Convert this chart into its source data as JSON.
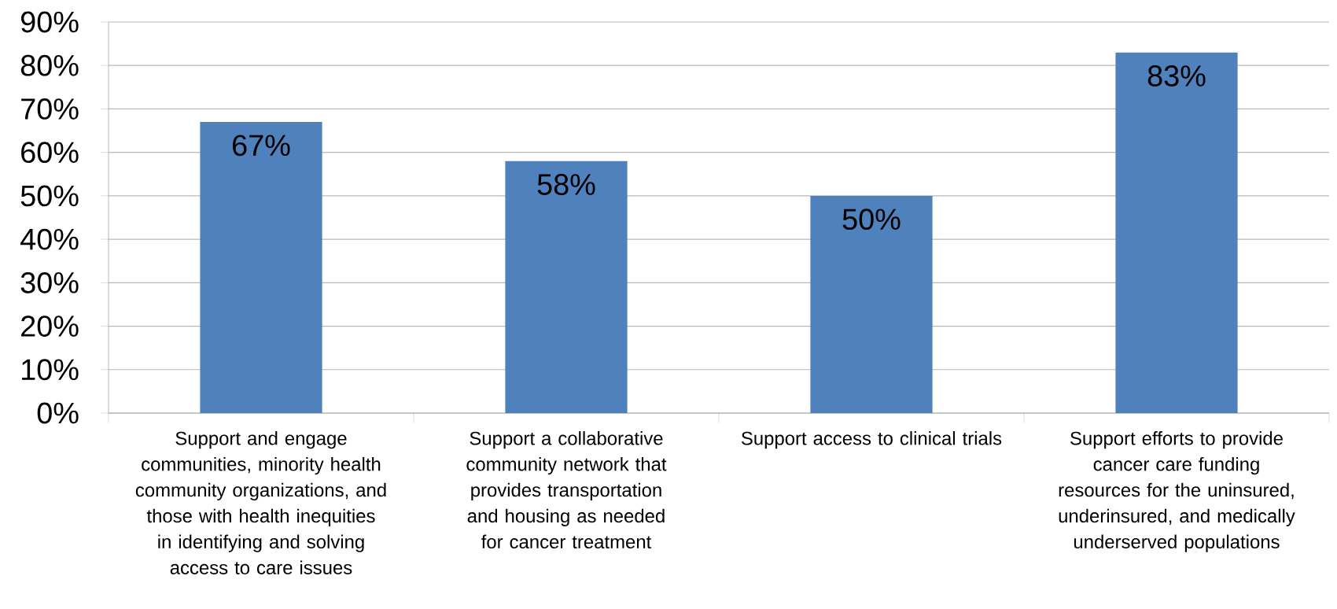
{
  "chart_data": {
    "type": "bar",
    "categories": [
      "Support and engage communities, minority health community organizations, and those with health inequities in identifying and solving access to care issues",
      "Support a collaborative community network that provides transportation and housing as needed for cancer treatment",
      "Support access to clinical trials",
      "Support efforts to provide cancer care funding resources for the uninsured, underinsured, and medically underserved populations"
    ],
    "values": [
      67,
      58,
      50,
      83
    ],
    "value_labels": [
      "67%",
      "58%",
      "50%",
      "83%"
    ],
    "color": "#4f81bd",
    "ylim": [
      0,
      90
    ],
    "yticks": [
      {
        "value": 0,
        "label": "0%"
      },
      {
        "value": 10,
        "label": "10%"
      },
      {
        "value": 20,
        "label": "20%"
      },
      {
        "value": 30,
        "label": "30%"
      },
      {
        "value": 40,
        "label": "40%"
      },
      {
        "value": 50,
        "label": "50%"
      },
      {
        "value": 60,
        "label": "60%"
      },
      {
        "value": 70,
        "label": "70%"
      },
      {
        "value": 80,
        "label": "80%"
      },
      {
        "value": 90,
        "label": "90%"
      }
    ],
    "grid": "y"
  }
}
